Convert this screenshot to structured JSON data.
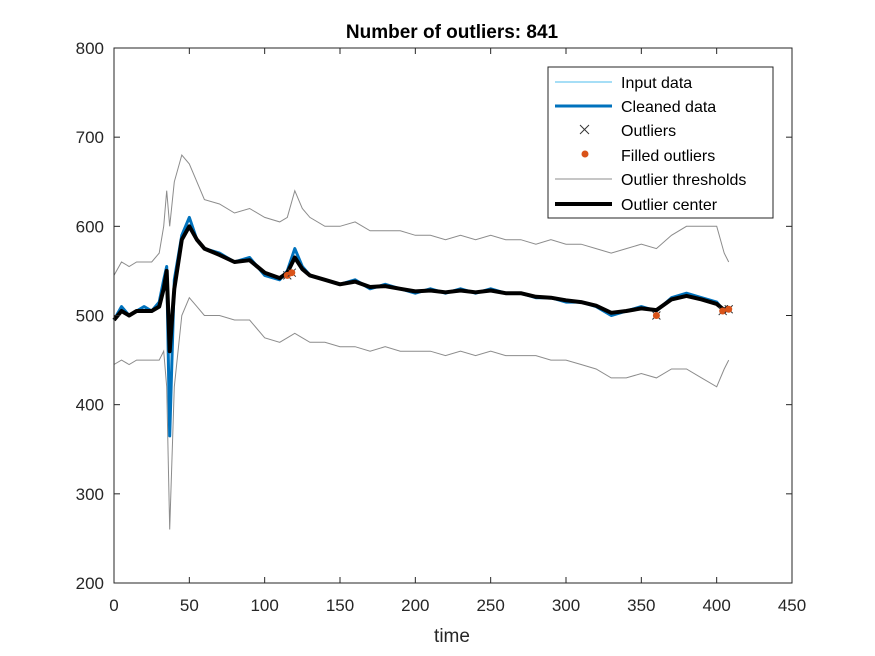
{
  "chart_data": {
    "type": "line",
    "title": "Number of outliers: 841",
    "xlabel": "time",
    "ylabel": "",
    "xlim": [
      0,
      450
    ],
    "ylim": [
      200,
      800
    ],
    "xticks": [
      0,
      50,
      100,
      150,
      200,
      250,
      300,
      350,
      400,
      450
    ],
    "yticks": [
      200,
      300,
      400,
      500,
      600,
      700,
      800
    ],
    "grid": false,
    "legend_position": "top-right",
    "colors": {
      "input": "#4DBEEE",
      "cleaned": "#0072BD",
      "outliers": "#333333",
      "filled": "#D95319",
      "thresholds": "#8C8C8C",
      "center": "#000000"
    },
    "series": [
      {
        "name": "Input data",
        "x": [
          0,
          5,
          10,
          15,
          20,
          25,
          30,
          33,
          35,
          37,
          40,
          45,
          50,
          55,
          60,
          70,
          80,
          90,
          100,
          110,
          115,
          120,
          125,
          130,
          140,
          150,
          160,
          170,
          180,
          190,
          200,
          210,
          220,
          230,
          240,
          250,
          260,
          270,
          280,
          290,
          300,
          310,
          320,
          330,
          340,
          350,
          360,
          370,
          380,
          390,
          400,
          405,
          408
        ],
        "y": [
          495,
          510,
          500,
          505,
          510,
          505,
          515,
          540,
          555,
          365,
          540,
          590,
          610,
          585,
          575,
          570,
          560,
          565,
          545,
          540,
          550,
          575,
          555,
          545,
          540,
          535,
          540,
          530,
          535,
          530,
          525,
          530,
          525,
          530,
          525,
          530,
          525,
          525,
          520,
          520,
          515,
          515,
          510,
          500,
          505,
          510,
          505,
          520,
          525,
          520,
          515,
          505,
          510
        ]
      },
      {
        "name": "Cleaned data",
        "x": [
          0,
          5,
          10,
          15,
          20,
          25,
          30,
          33,
          35,
          37,
          40,
          45,
          50,
          55,
          60,
          70,
          80,
          90,
          100,
          110,
          115,
          120,
          125,
          130,
          140,
          150,
          160,
          170,
          180,
          190,
          200,
          210,
          220,
          230,
          240,
          250,
          260,
          270,
          280,
          290,
          300,
          310,
          320,
          330,
          340,
          350,
          360,
          370,
          380,
          390,
          400,
          405,
          408
        ],
        "y": [
          495,
          510,
          500,
          505,
          510,
          505,
          515,
          540,
          555,
          365,
          540,
          590,
          610,
          585,
          575,
          570,
          560,
          565,
          545,
          540,
          550,
          575,
          555,
          545,
          540,
          535,
          540,
          530,
          535,
          530,
          525,
          530,
          525,
          530,
          525,
          530,
          525,
          525,
          520,
          520,
          515,
          515,
          510,
          500,
          505,
          510,
          505,
          520,
          525,
          520,
          515,
          505,
          510
        ]
      },
      {
        "name": "Outlier center",
        "x": [
          0,
          5,
          10,
          15,
          20,
          25,
          30,
          33,
          35,
          37,
          40,
          45,
          50,
          55,
          60,
          70,
          80,
          90,
          100,
          110,
          115,
          120,
          125,
          130,
          140,
          150,
          160,
          170,
          180,
          190,
          200,
          210,
          220,
          230,
          240,
          250,
          260,
          270,
          280,
          290,
          300,
          310,
          320,
          330,
          340,
          350,
          360,
          370,
          380,
          390,
          400,
          405,
          408
        ],
        "y": [
          495,
          505,
          500,
          505,
          505,
          505,
          510,
          530,
          550,
          460,
          530,
          585,
          600,
          585,
          575,
          568,
          560,
          562,
          548,
          542,
          548,
          565,
          552,
          545,
          540,
          535,
          538,
          532,
          533,
          530,
          527,
          528,
          526,
          528,
          526,
          528,
          525,
          525,
          521,
          520,
          517,
          515,
          511,
          503,
          505,
          508,
          506,
          518,
          522,
          518,
          513,
          506,
          510
        ]
      },
      {
        "name": "Outlier thresholds",
        "upper": [
          545,
          560,
          555,
          560,
          560,
          560,
          570,
          600,
          640,
          600,
          650,
          680,
          670,
          650,
          630,
          625,
          615,
          620,
          610,
          605,
          610,
          640,
          620,
          610,
          600,
          600,
          605,
          595,
          595,
          595,
          590,
          590,
          585,
          590,
          585,
          590,
          585,
          585,
          580,
          585,
          580,
          580,
          575,
          570,
          575,
          580,
          575,
          590,
          600,
          600,
          600,
          570,
          560
        ],
        "lower": [
          445,
          450,
          445,
          450,
          450,
          450,
          450,
          460,
          420,
          260,
          420,
          500,
          520,
          510,
          500,
          500,
          495,
          495,
          475,
          470,
          475,
          480,
          475,
          470,
          470,
          465,
          465,
          460,
          465,
          460,
          460,
          460,
          455,
          460,
          455,
          460,
          455,
          455,
          455,
          450,
          450,
          445,
          440,
          430,
          430,
          435,
          430,
          440,
          440,
          430,
          420,
          440,
          450
        ]
      }
    ],
    "filled_outliers": [
      {
        "x": 115,
        "y": 545
      },
      {
        "x": 118,
        "y": 548
      },
      {
        "x": 360,
        "y": 500
      },
      {
        "x": 404,
        "y": 505
      },
      {
        "x": 408,
        "y": 507
      }
    ]
  }
}
